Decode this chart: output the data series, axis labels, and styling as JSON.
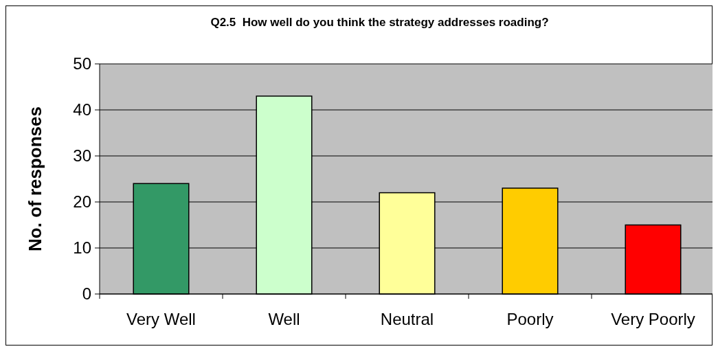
{
  "chart_data": {
    "type": "bar",
    "title": "Q2.5  How well do you think the strategy addresses roading?",
    "ylabel": "No. of responses",
    "categories": [
      "Very Well",
      "Well",
      "Neutral",
      "Poorly",
      "Very Poorly"
    ],
    "values": [
      24,
      43,
      22,
      23,
      15
    ],
    "colors": [
      "#339966",
      "#ccffcc",
      "#ffff99",
      "#ffcc00",
      "#ff0000"
    ],
    "ylim": [
      0,
      50
    ],
    "yticks": [
      0,
      10,
      20,
      30,
      40,
      50
    ],
    "grid": "y"
  }
}
